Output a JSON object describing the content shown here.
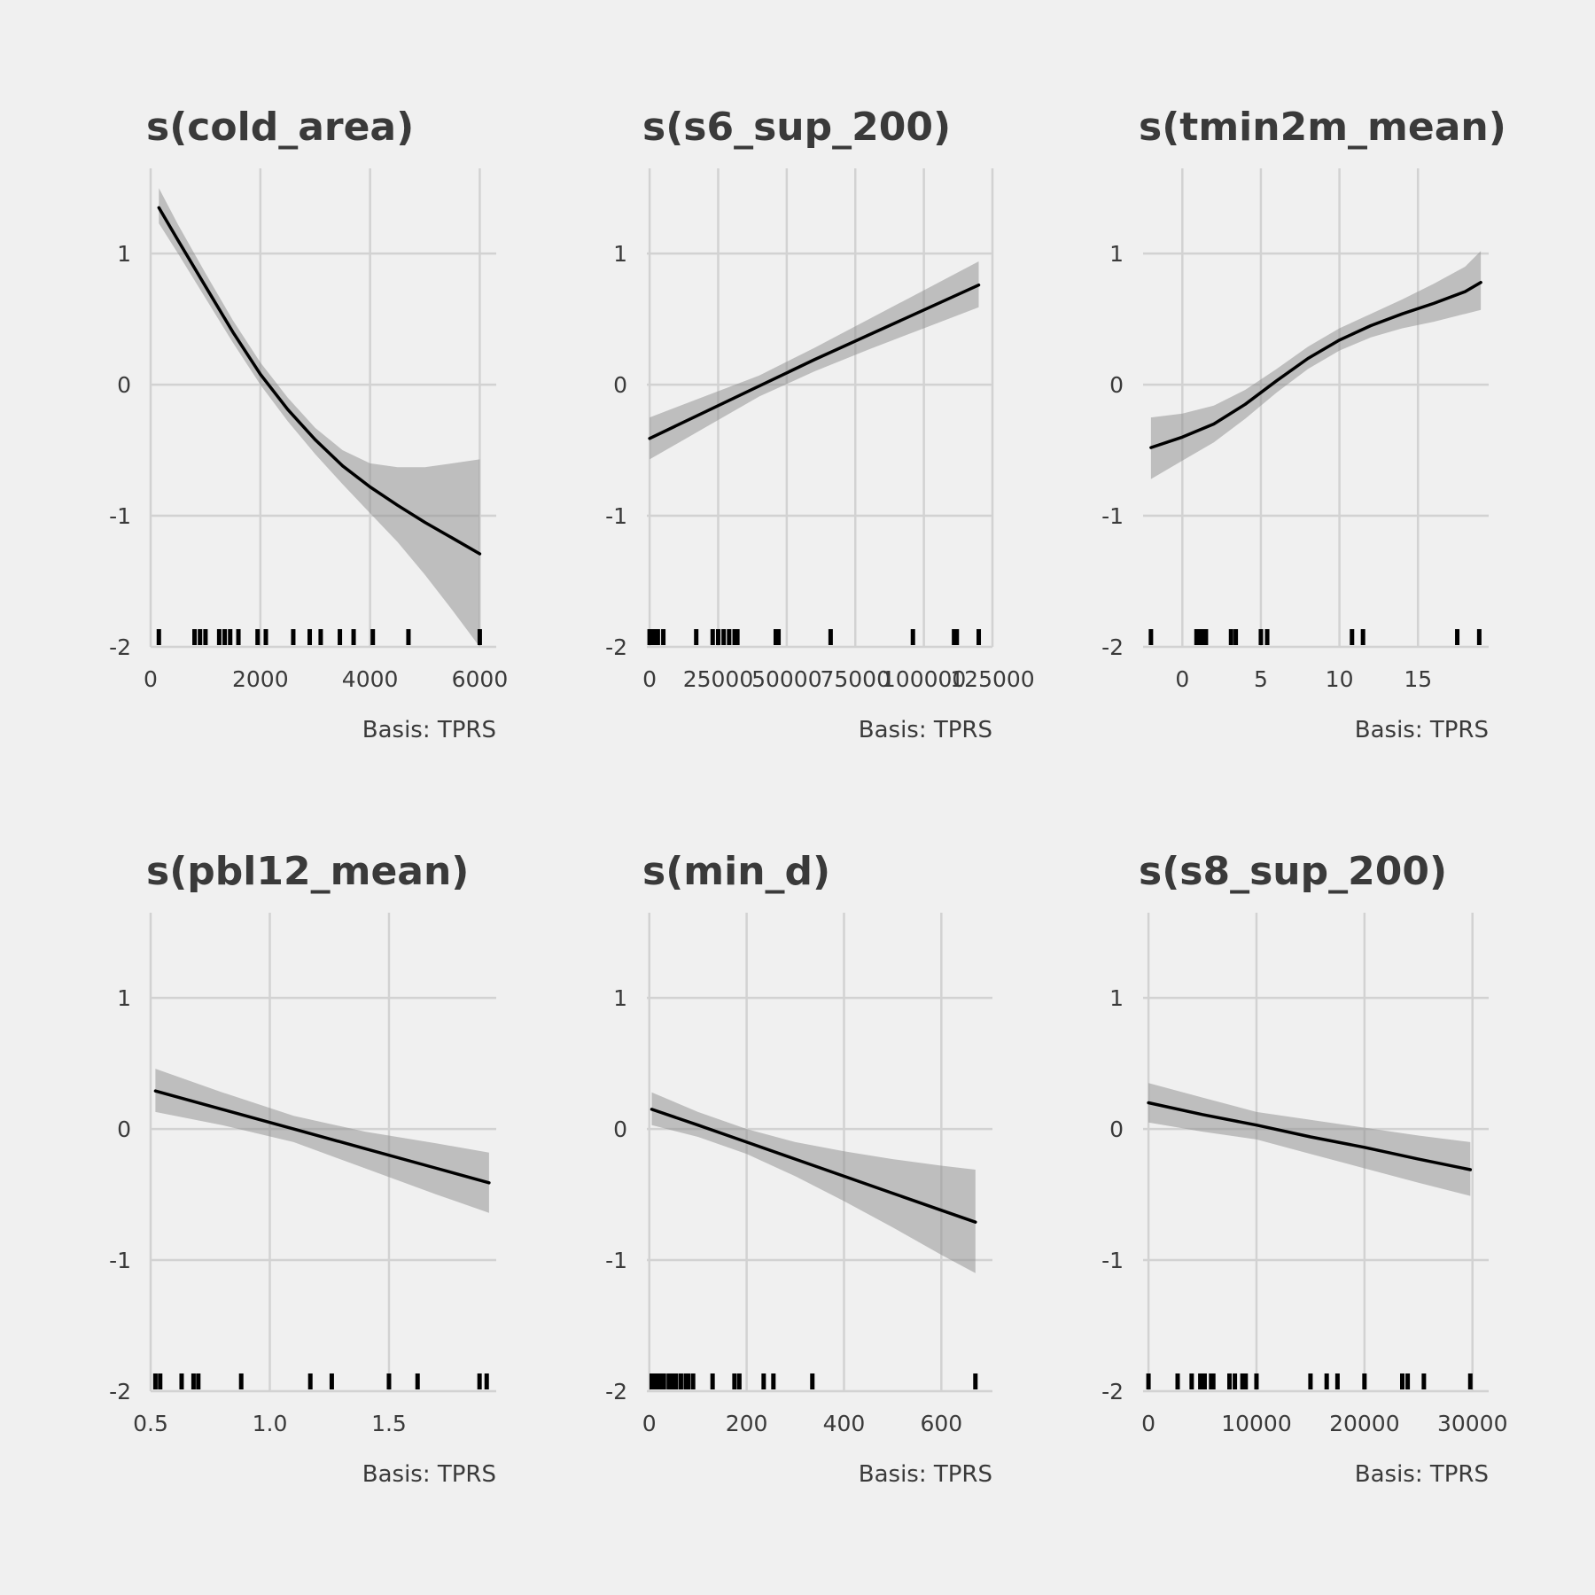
{
  "chart_data": [
    {
      "type": "line",
      "title": "s(cold_area)",
      "caption": "Basis: TPRS",
      "xlim": [
        0,
        6300
      ],
      "ylim": [
        -2.0,
        1.65
      ],
      "x_ticks": [
        0,
        2000,
        4000,
        6000
      ],
      "x_tick_labels": [
        "0",
        "2000",
        "4000",
        "6000"
      ],
      "y_ticks": [
        -2,
        -1,
        0,
        1
      ],
      "y_tick_labels": [
        "-2",
        "-1",
        "0",
        "1"
      ],
      "x": [
        150,
        500,
        1000,
        1500,
        2000,
        2500,
        3000,
        3500,
        4000,
        4500,
        5000,
        5500,
        6000
      ],
      "fit": [
        1.35,
        1.1,
        0.75,
        0.4,
        0.08,
        -0.19,
        -0.42,
        -0.62,
        -0.78,
        -0.92,
        -1.05,
        -1.17,
        -1.29
      ],
      "lower": [
        1.23,
        1.0,
        0.66,
        0.32,
        0.0,
        -0.28,
        -0.53,
        -0.76,
        -0.98,
        -1.2,
        -1.45,
        -1.72,
        -2.0
      ],
      "upper": [
        1.5,
        1.22,
        0.85,
        0.49,
        0.17,
        -0.1,
        -0.33,
        -0.5,
        -0.6,
        -0.63,
        -0.63,
        -0.6,
        -0.57
      ],
      "rug": [
        150,
        800,
        900,
        1000,
        1250,
        1350,
        1450,
        1600,
        1950,
        2100,
        2600,
        2900,
        3100,
        3450,
        3700,
        4050,
        4700,
        6000
      ]
    },
    {
      "type": "line",
      "title": "s(s6_sup_200)",
      "caption": "Basis: TPRS",
      "xlim": [
        -1000,
        125000
      ],
      "ylim": [
        -2.0,
        1.65
      ],
      "x_ticks": [
        0,
        25000,
        50000,
        75000,
        100000,
        125000
      ],
      "x_tick_labels": [
        "0",
        "25000",
        "50000",
        "75000",
        "100000",
        "125000"
      ],
      "y_ticks": [
        -2,
        -1,
        0,
        1
      ],
      "y_tick_labels": [
        "-2",
        "-1",
        "0",
        "1"
      ],
      "x": [
        0,
        20000,
        40000,
        60000,
        80000,
        100000,
        120000
      ],
      "fit": [
        -0.41,
        -0.21,
        -0.01,
        0.19,
        0.38,
        0.57,
        0.76
      ],
      "lower": [
        -0.57,
        -0.33,
        -0.09,
        0.1,
        0.27,
        0.43,
        0.59
      ],
      "upper": [
        -0.25,
        -0.09,
        0.07,
        0.28,
        0.5,
        0.72,
        0.94
      ],
      "rug": [
        0,
        1500,
        3000,
        5000,
        17000,
        23000,
        25000,
        27000,
        29000,
        31000,
        32000,
        46000,
        47000,
        66000,
        96000,
        111000,
        112000,
        120000
      ]
    },
    {
      "type": "line",
      "title": "s(tmin2m_mean)",
      "caption": "Basis: TPRS",
      "xlim": [
        -2.5,
        19.5
      ],
      "ylim": [
        -2.0,
        1.65
      ],
      "x_ticks": [
        0,
        5,
        10,
        15
      ],
      "x_tick_labels": [
        "0",
        "5",
        "10",
        "15"
      ],
      "y_ticks": [
        -2,
        -1,
        0,
        1
      ],
      "y_tick_labels": [
        "-2",
        "-1",
        "0",
        "1"
      ],
      "x": [
        -2,
        0,
        2,
        4,
        6,
        8,
        10,
        12,
        14,
        16,
        18,
        19
      ],
      "fit": [
        -0.48,
        -0.4,
        -0.3,
        -0.15,
        0.03,
        0.2,
        0.34,
        0.45,
        0.54,
        0.62,
        0.71,
        0.78
      ],
      "lower": [
        -0.72,
        -0.58,
        -0.44,
        -0.26,
        -0.06,
        0.12,
        0.26,
        0.36,
        0.43,
        0.48,
        0.54,
        0.57
      ],
      "upper": [
        -0.25,
        -0.22,
        -0.16,
        -0.04,
        0.12,
        0.29,
        0.43,
        0.54,
        0.65,
        0.77,
        0.9,
        1.02
      ],
      "rug": [
        -2,
        0.9,
        1.1,
        1.3,
        1.5,
        3.1,
        3.4,
        5.0,
        5.4,
        10.8,
        11.5,
        17.5,
        18.9
      ]
    },
    {
      "type": "line",
      "title": "s(pbl12_mean)",
      "caption": "Basis: TPRS",
      "xlim": [
        0.5,
        1.95
      ],
      "ylim": [
        -2.0,
        1.65
      ],
      "x_ticks": [
        0.5,
        1.0,
        1.5
      ],
      "x_tick_labels": [
        "0.5",
        "1.0",
        "1.5"
      ],
      "y_ticks": [
        -2,
        -1,
        0,
        1
      ],
      "y_tick_labels": [
        "-2",
        "-1",
        "0",
        "1"
      ],
      "x": [
        0.52,
        0.8,
        1.1,
        1.4,
        1.7,
        1.92
      ],
      "fit": [
        0.29,
        0.15,
        0.0,
        -0.15,
        -0.3,
        -0.41
      ],
      "lower": [
        0.13,
        0.03,
        -0.1,
        -0.3,
        -0.5,
        -0.64
      ],
      "upper": [
        0.46,
        0.28,
        0.1,
        -0.02,
        -0.11,
        -0.18
      ],
      "rug": [
        0.52,
        0.54,
        0.63,
        0.68,
        0.7,
        0.88,
        1.17,
        1.26,
        1.5,
        1.62,
        1.88,
        1.91
      ]
    },
    {
      "type": "line",
      "title": "s(min_d)",
      "caption": "Basis: TPRS",
      "xlim": [
        -5,
        705
      ],
      "ylim": [
        -2.0,
        1.65
      ],
      "x_ticks": [
        0,
        200,
        400,
        600
      ],
      "x_tick_labels": [
        "0",
        "200",
        "400",
        "600"
      ],
      "y_ticks": [
        -2,
        -1,
        0,
        1
      ],
      "y_tick_labels": [
        "-2",
        "-1",
        "0",
        "1"
      ],
      "x": [
        5,
        100,
        200,
        300,
        400,
        500,
        600,
        670
      ],
      "fit": [
        0.15,
        0.03,
        -0.1,
        -0.23,
        -0.36,
        -0.49,
        -0.62,
        -0.71
      ],
      "lower": [
        0.03,
        -0.06,
        -0.19,
        -0.36,
        -0.55,
        -0.75,
        -0.96,
        -1.1
      ],
      "upper": [
        0.28,
        0.13,
        0.0,
        -0.1,
        -0.17,
        -0.23,
        -0.28,
        -0.31
      ],
      "rug": [
        5,
        10,
        15,
        20,
        25,
        30,
        40,
        45,
        50,
        55,
        65,
        75,
        80,
        90,
        130,
        175,
        185,
        235,
        255,
        335,
        670
      ]
    },
    {
      "type": "line",
      "title": "s(s8_sup_200)",
      "caption": "Basis: TPRS",
      "xlim": [
        -500,
        31500
      ],
      "ylim": [
        -2.0,
        1.65
      ],
      "x_ticks": [
        0,
        10000,
        20000,
        30000
      ],
      "x_tick_labels": [
        "0",
        "10000",
        "20000",
        "30000"
      ],
      "y_ticks": [
        -2,
        -1,
        0,
        1
      ],
      "y_tick_labels": [
        "-2",
        "-1",
        "0",
        "1"
      ],
      "x": [
        0,
        5000,
        10000,
        15000,
        20000,
        25000,
        29800
      ],
      "fit": [
        0.2,
        0.11,
        0.03,
        -0.06,
        -0.14,
        -0.23,
        -0.31
      ],
      "lower": [
        0.05,
        -0.02,
        -0.08,
        -0.19,
        -0.3,
        -0.41,
        -0.51
      ],
      "upper": [
        0.35,
        0.24,
        0.13,
        0.07,
        0.01,
        -0.05,
        -0.1
      ],
      "rug": [
        0,
        2700,
        4000,
        4800,
        5200,
        5800,
        6000,
        7500,
        8000,
        8700,
        9000,
        10000,
        15000,
        16500,
        17500,
        20000,
        23500,
        24000,
        25500,
        29800
      ]
    }
  ]
}
